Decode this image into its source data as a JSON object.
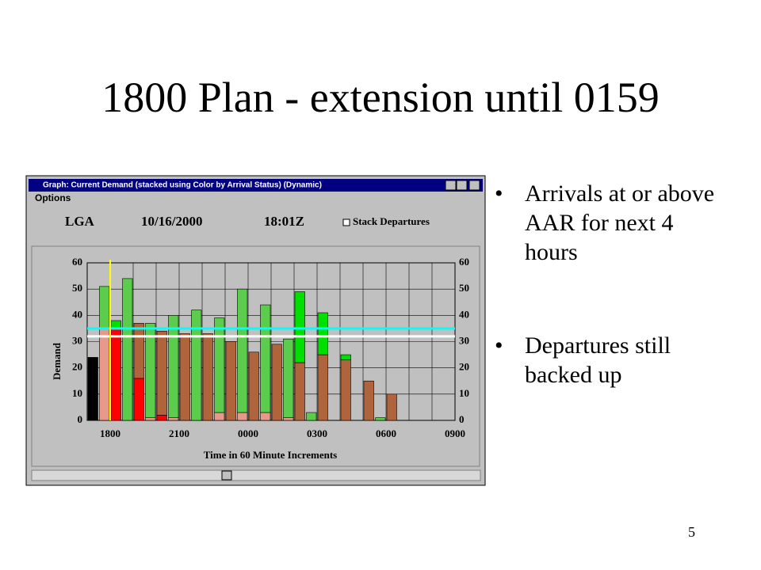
{
  "slide": {
    "title": "1800 Plan - extension until 0159",
    "bullets": [
      "Arrivals at or above AAR for next 4 hours",
      "Departures still backed up"
    ],
    "page_number": "5"
  },
  "window": {
    "title": "Graph: Current Demand (stacked using Color by Arrival Status) (Dynamic)",
    "menu": "Options",
    "airport": "LGA",
    "date": "10/16/2000",
    "time": "18:01Z",
    "checkbox_label": "Stack Departures"
  },
  "chart_data": {
    "type": "bar",
    "ylabel": "Demand",
    "xlabel": "Time in 60 Minute Increments",
    "categories": [
      null,
      "1800",
      null,
      null,
      "2100",
      null,
      null,
      "0000",
      null,
      null,
      "0300",
      null,
      null,
      "0600",
      null,
      null,
      "0900"
    ],
    "series": [
      {
        "color": "#000000",
        "values": [
          24,
          null,
          null,
          null,
          null,
          null,
          null,
          null,
          null,
          null,
          null,
          null,
          null,
          null,
          null,
          null,
          null
        ]
      },
      {
        "color": "#ff0000",
        "values": [
          null,
          35,
          16,
          2,
          null,
          null,
          null,
          null,
          null,
          null,
          null,
          null,
          null,
          null,
          null,
          null,
          null
        ]
      },
      {
        "color": "#b0643c",
        "values": [
          null,
          null,
          21,
          32,
          33,
          33,
          30,
          26,
          29,
          22,
          25,
          23,
          15,
          10,
          null,
          null,
          null
        ]
      },
      {
        "color": "#00e000",
        "values": [
          null,
          3,
          null,
          null,
          null,
          null,
          null,
          null,
          null,
          27,
          16,
          2,
          null,
          null,
          null,
          null,
          null
        ]
      },
      {
        "color": "#e89a8a",
        "values": [
          35,
          null,
          1,
          1,
          null,
          3,
          3,
          3,
          1,
          null,
          null,
          null,
          null,
          null,
          null,
          null,
          null
        ]
      },
      {
        "color": "#5ccc4c",
        "values": [
          16,
          54,
          36,
          39,
          42,
          36,
          47,
          41,
          30,
          3,
          null,
          null,
          1,
          null,
          null,
          null,
          null
        ]
      }
    ],
    "reference_lines": [
      {
        "value": 35,
        "color": "#00ffff"
      },
      {
        "value": 32,
        "color": "#ffffff"
      }
    ],
    "ylim": [
      0,
      60
    ],
    "yticks": [
      0,
      10,
      20,
      30,
      40,
      50,
      60
    ],
    "grid": true
  }
}
